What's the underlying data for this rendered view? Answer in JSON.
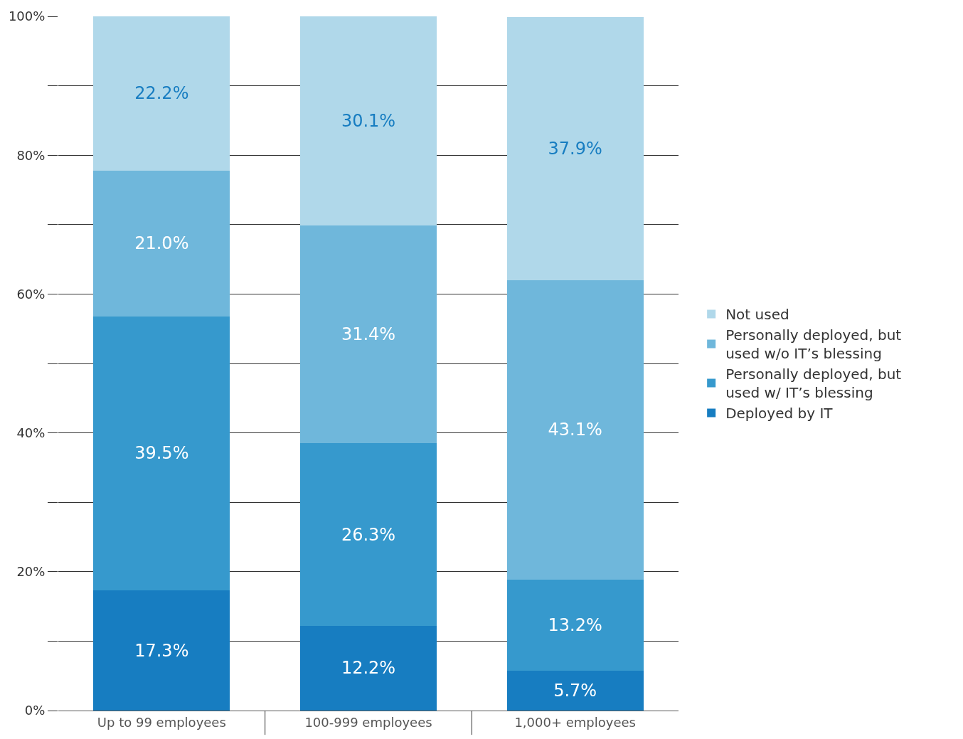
{
  "chart_data": {
    "type": "bar",
    "stacked": true,
    "categories": [
      "Up to 99 employees",
      "100-999 employees",
      "1,000+ employees"
    ],
    "series": [
      {
        "name": "Deployed by IT",
        "color": "#177dc1",
        "values": [
          17.3,
          12.2,
          5.7
        ],
        "value_labels": [
          "17.3%",
          "12.2%",
          "5.7%"
        ]
      },
      {
        "name": "Personally deployed, but used w/ IT’s blessing",
        "color": "#3699cd",
        "values": [
          39.5,
          26.3,
          13.2
        ],
        "value_labels": [
          "39.5%",
          "26.3%",
          "13.2%"
        ]
      },
      {
        "name": "Personally deployed, but used w/o IT’s blessing",
        "color": "#6fb7db",
        "values": [
          21.0,
          31.4,
          43.1
        ],
        "value_labels": [
          "21.0%",
          "31.4%",
          "43.1%"
        ]
      },
      {
        "name": "Not used",
        "color": "#b0d8ea",
        "values": [
          22.2,
          30.1,
          37.9
        ],
        "value_labels": [
          "22.2%",
          "30.1%",
          "37.9%"
        ]
      }
    ],
    "ylim": [
      0,
      100
    ],
    "yticks": [
      {
        "value": 0,
        "label": "0%"
      },
      {
        "value": 10,
        "label": null
      },
      {
        "value": 20,
        "label": "20%"
      },
      {
        "value": 30,
        "label": null
      },
      {
        "value": 40,
        "label": "40%"
      },
      {
        "value": 50,
        "label": null
      },
      {
        "value": 60,
        "label": "60%"
      },
      {
        "value": 70,
        "label": null
      },
      {
        "value": 80,
        "label": "80%"
      },
      {
        "value": 90,
        "label": null
      },
      {
        "value": 100,
        "label": "100%"
      }
    ],
    "grid": "y",
    "legend": "right"
  }
}
